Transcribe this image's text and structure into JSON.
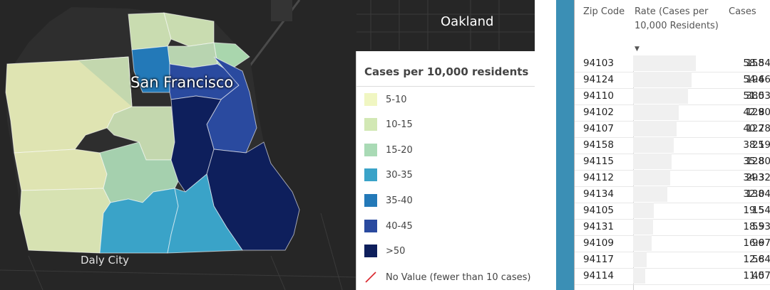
{
  "map": {
    "labels": {
      "city": "San Francisco",
      "oakland": "Oakland",
      "daly_city": "Daly City"
    }
  },
  "legend": {
    "title": "Cases per 10,000 residents",
    "items": [
      {
        "label": "5-10",
        "color": "#f0f6c2"
      },
      {
        "label": "10-15",
        "color": "#d2e8b4"
      },
      {
        "label": "15-20",
        "color": "#a9dab5"
      },
      {
        "label": "30-35",
        "color": "#3aa3c8"
      },
      {
        "label": "35-40",
        "color": "#2379b8"
      },
      {
        "label": "40-45",
        "color": "#2a4a9f"
      },
      {
        "label": ">50",
        "color": "#0e1f5c"
      },
      {
        "label": "No Value (fewer than 10 cases)",
        "color": "#ffffff"
      }
    ]
  },
  "table": {
    "headers": {
      "zip": "Zip Code",
      "rate": "Rate (Cases per 10,000 Residents)",
      "cases": "Cases"
    },
    "sort_column": "rate",
    "rows": [
      {
        "zip": "94103",
        "rate": "58.54",
        "cases": "158"
      },
      {
        "zip": "94124",
        "rate": "54.66",
        "cases": "194"
      },
      {
        "zip": "94110",
        "rate": "51.53",
        "cases": "380"
      },
      {
        "zip": "94102",
        "rate": "42.80",
        "cases": "129"
      },
      {
        "zip": "94107",
        "rate": "40.78",
        "cases": "122"
      },
      {
        "zip": "94158",
        "rate": "38.19",
        "cases": "25"
      },
      {
        "zip": "94115",
        "rate": "35.80",
        "cases": "128"
      },
      {
        "zip": "94112",
        "rate": "34.32",
        "cases": "293"
      },
      {
        "zip": "94134",
        "rate": "32.04",
        "cases": "138"
      },
      {
        "zip": "94105",
        "rate": "19.54",
        "cases": "15"
      },
      {
        "zip": "94131",
        "rate": "18.93",
        "cases": "55"
      },
      {
        "zip": "94109",
        "rate": "16.97",
        "cases": "96"
      },
      {
        "zip": "94117",
        "rate": "12.84",
        "cases": "56"
      },
      {
        "zip": "94114",
        "rate": "11.57",
        "cases": "40"
      }
    ]
  }
}
